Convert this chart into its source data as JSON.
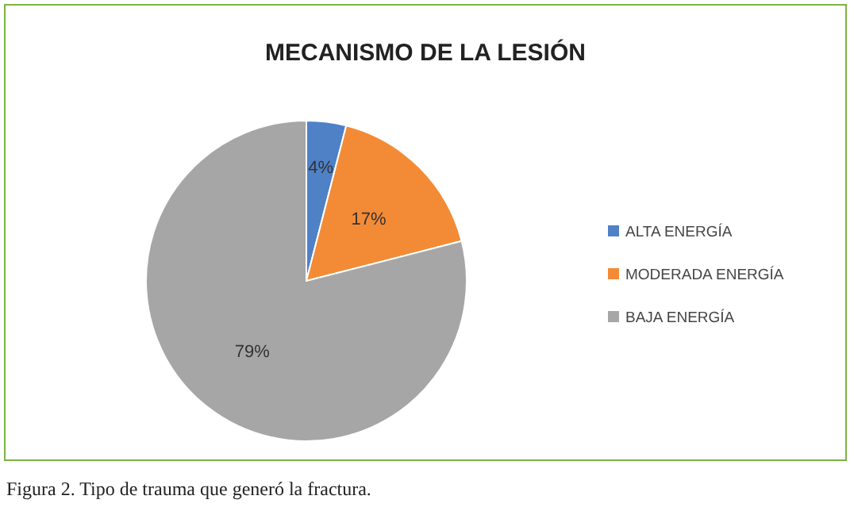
{
  "chart_data": {
    "type": "pie",
    "title": "MECANISMO DE LA LESIÓN",
    "categories": [
      "ALTA ENERGÍA",
      "MODERADA ENERGÍA",
      "BAJA ENERGÍA"
    ],
    "values": [
      4,
      17,
      79
    ],
    "value_labels": [
      "4%",
      "17%",
      "79%"
    ],
    "colors": [
      "#4f81c7",
      "#f38b36",
      "#a6a6a6"
    ],
    "legend": "right",
    "annotations": [
      "Figura 2. Tipo de trauma que generó la fractura."
    ]
  }
}
